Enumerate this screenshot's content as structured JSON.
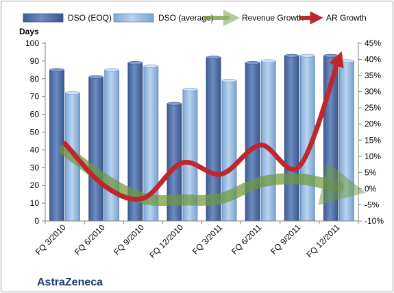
{
  "chart_data": {
    "type": "bar",
    "subtitle": "AstraZeneca",
    "ylabel": "Days",
    "categories": [
      "FQ 3/2010",
      "FQ 6/2010",
      "FQ 9/2010",
      "FQ 12/2010",
      "FQ 3/2011",
      "FQ 6/2011",
      "FQ 9/2011",
      "FQ 12/2011"
    ],
    "ylim": [
      0,
      100
    ],
    "y2lim": [
      -10,
      45
    ],
    "yticks": [
      "0",
      "10",
      "20",
      "30",
      "40",
      "50",
      "60",
      "70",
      "80",
      "90",
      "100"
    ],
    "y2ticks": [
      "-10%",
      "-5%",
      "0%",
      "5%",
      "10%",
      "15%",
      "20%",
      "25%",
      "30%",
      "35%",
      "40%",
      "45%"
    ],
    "grid": false,
    "legend_position": "top",
    "series": [
      {
        "name": "DSO (EOQ)",
        "kind": "bar",
        "color": "#4f6fa6",
        "values": [
          85,
          81,
          89,
          66,
          92,
          89,
          93,
          93
        ]
      },
      {
        "name": "DSO (average)",
        "kind": "bar",
        "color": "#8fb6e0",
        "values": [
          72,
          85,
          87,
          74,
          79,
          90,
          93,
          90
        ]
      },
      {
        "name": "Revenue Growth",
        "kind": "line",
        "axis": "right",
        "color": "#6f9a3c",
        "values": [
          12,
          3,
          -3,
          -3.5,
          -3,
          2,
          3,
          0.5
        ]
      },
      {
        "name": "AR Growth",
        "kind": "line",
        "axis": "right",
        "color": "#c0272d",
        "values": [
          14,
          1,
          -3,
          8,
          4.5,
          13.5,
          7,
          40
        ]
      }
    ]
  }
}
